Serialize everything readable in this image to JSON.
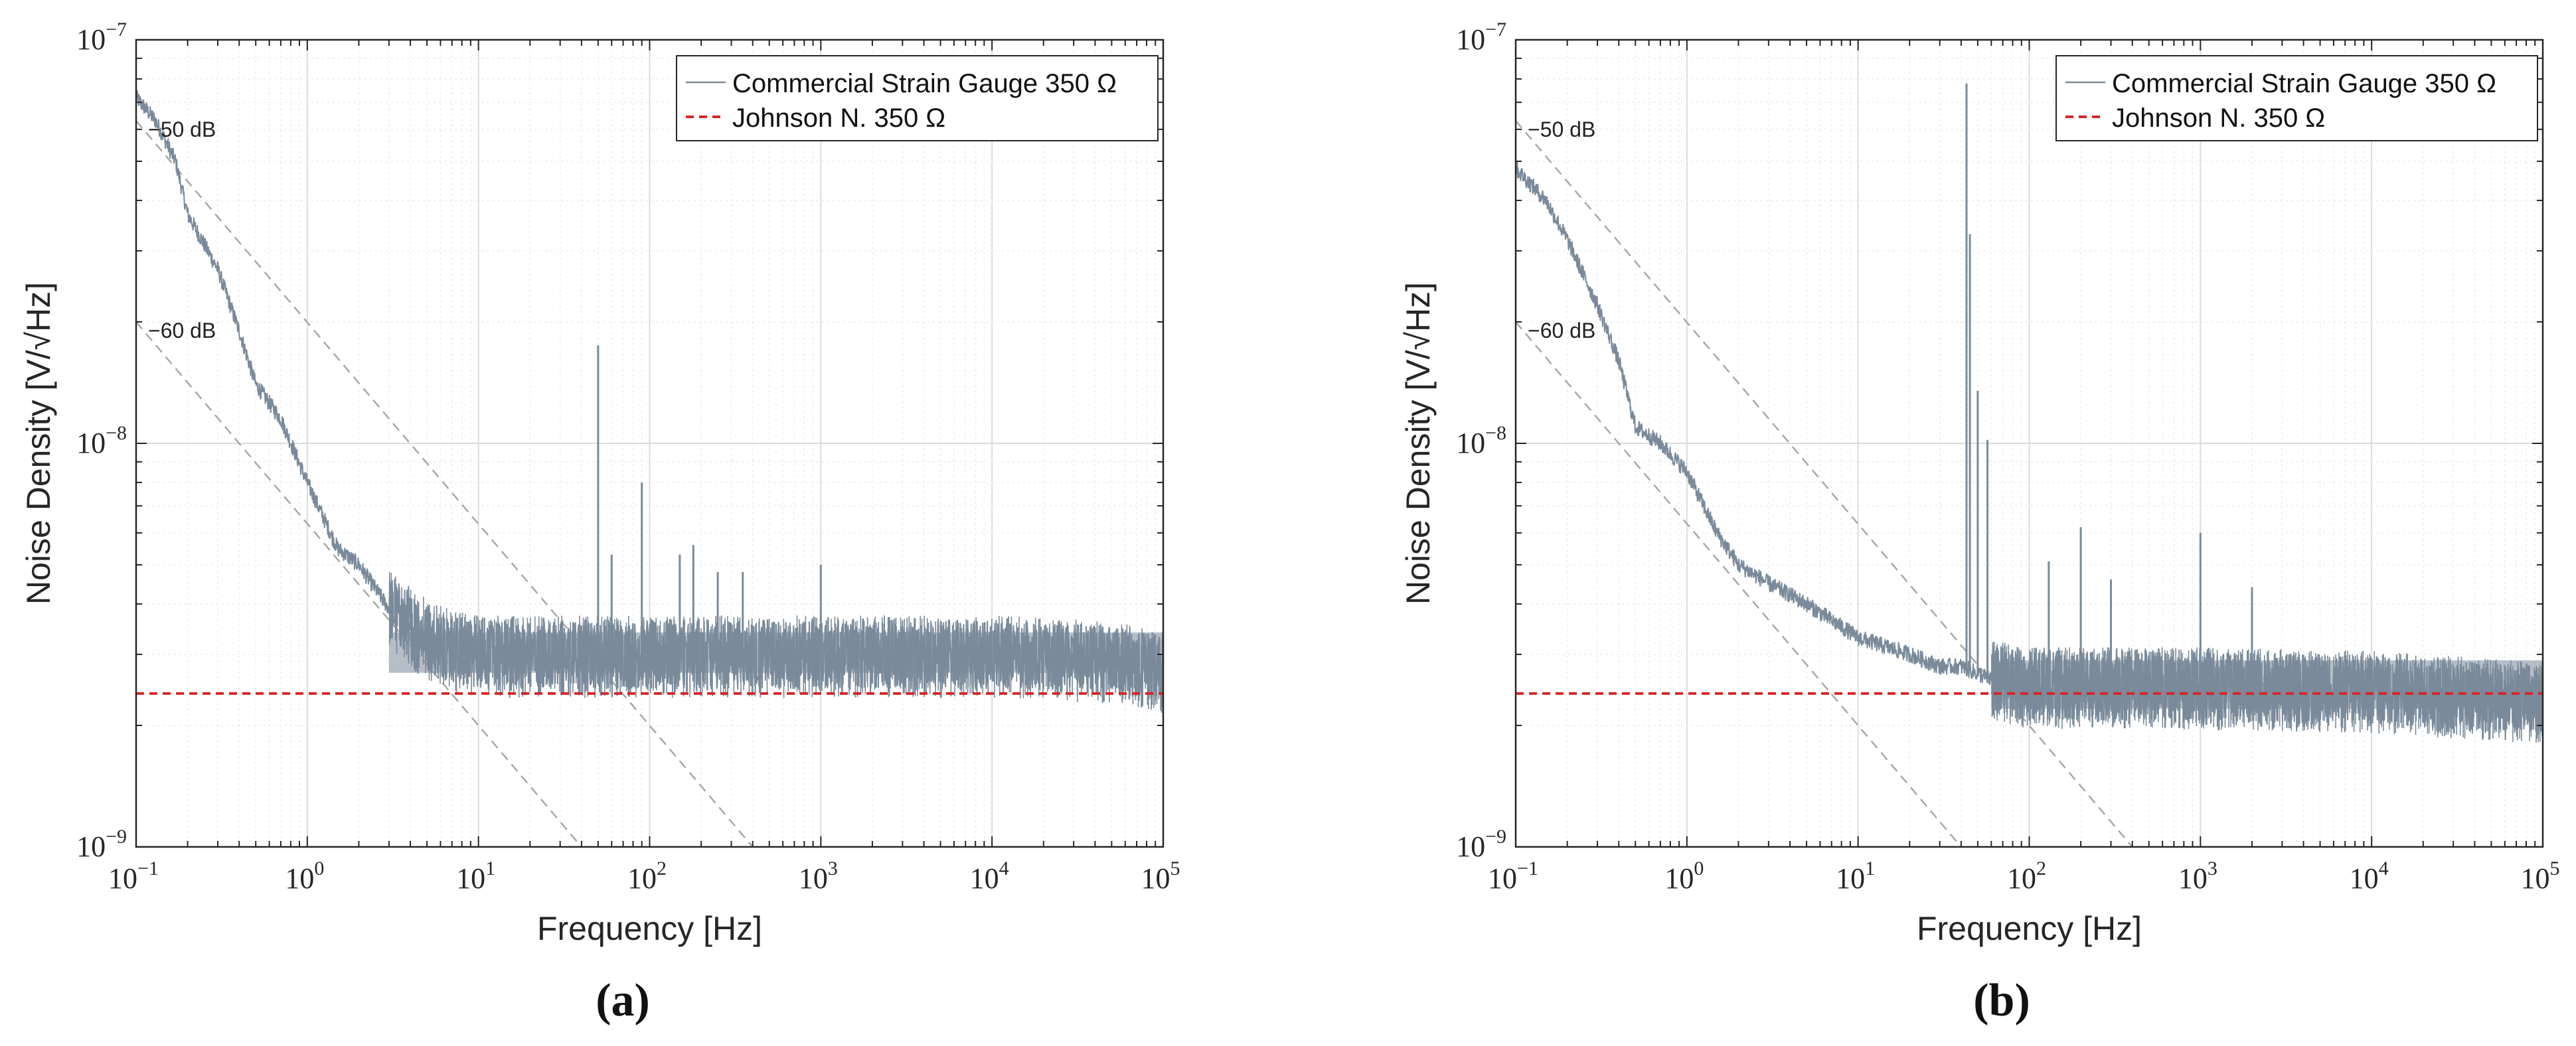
{
  "chart_data": [
    {
      "panel_label": "(a)",
      "type": "line",
      "xlabel": "Frequency [Hz]",
      "ylabel": "Noise Density [V/√Hz]",
      "x_scale": "log",
      "y_scale": "log",
      "xlim": [
        0.1,
        100000
      ],
      "ylim": [
        1e-09,
        1e-07
      ],
      "grid": true,
      "legend_position": "top-right",
      "x_ticks": [
        {
          "base": "10",
          "exp": "−1",
          "value": 0.1
        },
        {
          "base": "10",
          "exp": "0",
          "value": 1
        },
        {
          "base": "10",
          "exp": "1",
          "value": 10
        },
        {
          "base": "10",
          "exp": "2",
          "value": 100
        },
        {
          "base": "10",
          "exp": "3",
          "value": 1000
        },
        {
          "base": "10",
          "exp": "4",
          "value": 10000
        },
        {
          "base": "10",
          "exp": "5",
          "value": 100000
        }
      ],
      "y_ticks": [
        {
          "base": "10",
          "exp": "−9",
          "value": 1e-09
        },
        {
          "base": "10",
          "exp": "−8",
          "value": 1e-08
        },
        {
          "base": "10",
          "exp": "−7",
          "value": 1e-07
        }
      ],
      "series": [
        {
          "name": "Commercial Strain Gauge 350 Ω",
          "color": "#7a8a9a",
          "style": "solid",
          "x": [
            0.1,
            0.13,
            0.17,
            0.2,
            0.3,
            0.4,
            0.5,
            0.7,
            1.0,
            1.5,
            2,
            3,
            5,
            7,
            10,
            20,
            50,
            100,
            1000,
            10000,
            50000,
            100000
          ],
          "y": [
            7.2e-08,
            6.3e-08,
            5e-08,
            3.7e-08,
            2.7e-08,
            1.9e-08,
            1.4e-08,
            1.15e-08,
            8e-09,
            5.5e-09,
            5e-09,
            3.9e-09,
            3.3e-09,
            3.1e-09,
            3e-09,
            3e-09,
            3e-09,
            3e-09,
            3e-09,
            3e-09,
            2.9e-09,
            2.75e-09
          ],
          "band": {
            "x_from": 3,
            "x_to": 100000,
            "y_low": 2.7e-09,
            "y_high": 3.4e-09
          },
          "spikes": [
            {
              "x": 50,
              "y": 1.75e-08
            },
            {
              "x": 60,
              "y": 5.3e-09
            },
            {
              "x": 90,
              "y": 8e-09
            },
            {
              "x": 150,
              "y": 5.3e-09
            },
            {
              "x": 180,
              "y": 5.6e-09
            },
            {
              "x": 250,
              "y": 4.8e-09
            },
            {
              "x": 350,
              "y": 4.8e-09
            },
            {
              "x": 1000,
              "y": 5e-09
            }
          ]
        },
        {
          "name": "Johnson N. 350 Ω",
          "color": "#d62728",
          "style": "dashed",
          "x": [
            0.1,
            100000
          ],
          "y": [
            2.4e-09,
            2.4e-09
          ]
        }
      ],
      "reference_lines": [
        {
          "label": "−50 dB",
          "color": "#a8a8a8",
          "x": [
            0.1,
            400
          ],
          "y": [
            6.3e-08,
            1e-09
          ]
        },
        {
          "label": "−60 dB",
          "color": "#a8a8a8",
          "x": [
            0.1,
            40
          ],
          "y": [
            2e-08,
            1e-09
          ]
        }
      ]
    },
    {
      "panel_label": "(b)",
      "type": "line",
      "xlabel": "Frequency [Hz]",
      "ylabel": "Noise Density [V/√Hz]",
      "x_scale": "log",
      "y_scale": "log",
      "xlim": [
        0.1,
        100000
      ],
      "ylim": [
        1e-09,
        1e-07
      ],
      "grid": true,
      "legend_position": "top-right",
      "x_ticks": [
        {
          "base": "10",
          "exp": "−1",
          "value": 0.1
        },
        {
          "base": "10",
          "exp": "0",
          "value": 1
        },
        {
          "base": "10",
          "exp": "1",
          "value": 10
        },
        {
          "base": "10",
          "exp": "2",
          "value": 100
        },
        {
          "base": "10",
          "exp": "3",
          "value": 1000
        },
        {
          "base": "10",
          "exp": "4",
          "value": 10000
        },
        {
          "base": "10",
          "exp": "5",
          "value": 100000
        }
      ],
      "y_ticks": [
        {
          "base": "10",
          "exp": "−9",
          "value": 1e-09
        },
        {
          "base": "10",
          "exp": "−8",
          "value": 1e-08
        },
        {
          "base": "10",
          "exp": "−7",
          "value": 1e-07
        }
      ],
      "series": [
        {
          "name": "Commercial Strain Gauge 350 Ω",
          "color": "#7a8a9a",
          "style": "solid",
          "x": [
            0.1,
            0.15,
            0.2,
            0.3,
            0.4,
            0.5,
            0.7,
            1.0,
            1.5,
            2,
            3,
            5,
            10,
            20,
            30,
            40,
            60,
            100,
            1000,
            10000,
            100000
          ],
          "y": [
            4.8e-08,
            4e-08,
            3.2e-08,
            2.2e-08,
            1.6e-08,
            1.1e-08,
            1e-08,
            8.5e-09,
            6e-09,
            5e-09,
            4.5e-09,
            4e-09,
            3.3e-09,
            3e-09,
            2.8e-09,
            2.8e-09,
            2.6e-09,
            2.5e-09,
            2.5e-09,
            2.45e-09,
            2.3e-09
          ],
          "band": {
            "x_from": 60,
            "x_to": 100000,
            "y_low": 2.2e-09,
            "y_high": 2.9e-09
          },
          "spikes": [
            {
              "x": 43,
              "y": 7.8e-08
            },
            {
              "x": 45,
              "y": 3.3e-08
            },
            {
              "x": 50,
              "y": 1.35e-08
            },
            {
              "x": 57,
              "y": 1.02e-08
            },
            {
              "x": 130,
              "y": 5.1e-09
            },
            {
              "x": 200,
              "y": 6.2e-09
            },
            {
              "x": 300,
              "y": 4.6e-09
            },
            {
              "x": 1000,
              "y": 6e-09
            },
            {
              "x": 2000,
              "y": 4.4e-09
            }
          ]
        },
        {
          "name": "Johnson N. 350 Ω",
          "color": "#d62728",
          "style": "dashed",
          "x": [
            0.1,
            100000
          ],
          "y": [
            2.4e-09,
            2.4e-09
          ]
        }
      ],
      "reference_lines": [
        {
          "label": "−50 dB",
          "color": "#a8a8a8",
          "x": [
            0.1,
            400
          ],
          "y": [
            6.3e-08,
            1e-09
          ]
        },
        {
          "label": "−60 dB",
          "color": "#a8a8a8",
          "x": [
            0.1,
            40
          ],
          "y": [
            2e-08,
            1e-09
          ]
        }
      ]
    }
  ]
}
